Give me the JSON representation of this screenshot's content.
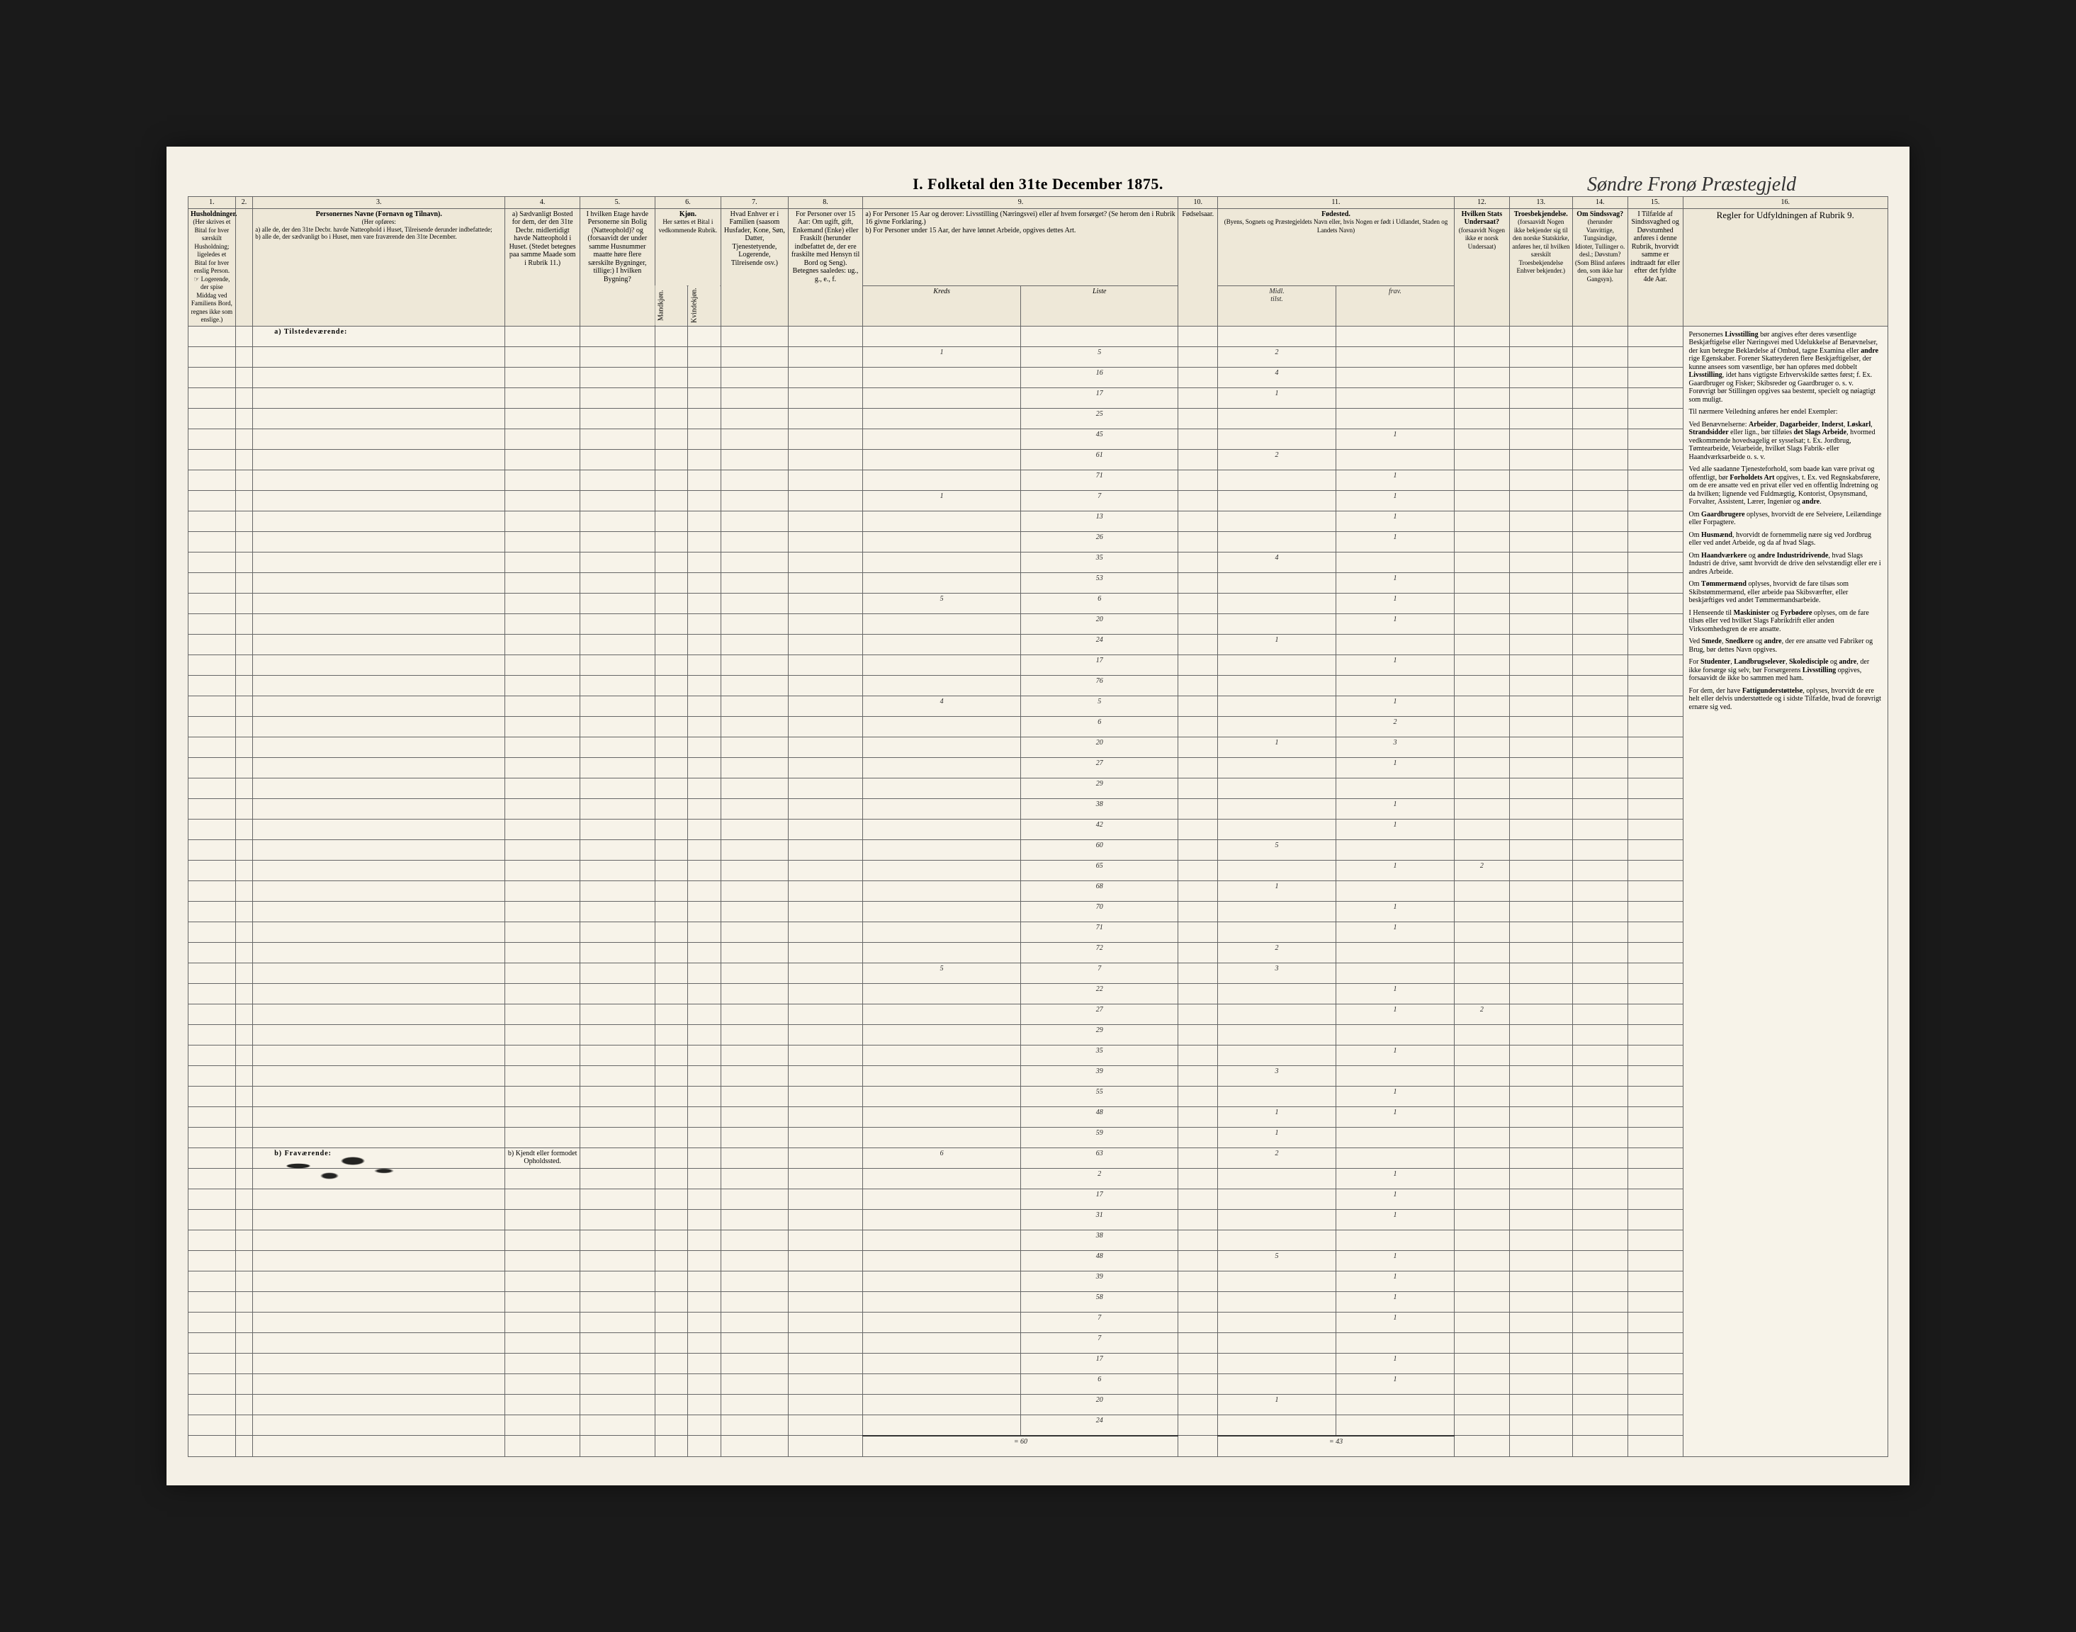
{
  "title": "I.  Folketal den 31te December 1875.",
  "parish_handwriting": "Søndre Fronø Præstegjeld",
  "columns": {
    "c1": {
      "num": "1.",
      "head": "Husholdninger.",
      "sub": "(Her skrives et Bital for hver særskilt Husholdning; ligeledes et Bital for hver enslig Person. ☞ Logerende, der spise Middag ved Familiens Bord, regnes ikke som enslige.)"
    },
    "c2": {
      "num": "2."
    },
    "c3": {
      "num": "3.",
      "head": "Personernes Navne (Fornavn og Tilnavn).",
      "sub_intro": "(Her opføres:",
      "sub_a": "a) alle de, der den 31te Decbr. havde Natteophold i Huset, Tilreisende derunder indbefattede;",
      "sub_b": "b) alle de, der sædvanligt bo i Huset, men vare fraværende den 31te December."
    },
    "c4": {
      "num": "4.",
      "head": "a) Sædvanligt Bosted for dem, der den 31te Decbr. midlertidigt havde Natteophold i Huset. (Stedet betegnes paa samme Maade som i Rubrik 11.)"
    },
    "c5": {
      "num": "5.",
      "head": "I hvilken Etage havde Personerne sin Bolig (Natteophold)? og (forsaavidt der under samme Husnummer maatte høre flere særskilte Bygninger, tillige:) I hvilken Bygning?"
    },
    "c6": {
      "num": "6.",
      "head": "Kjøn.",
      "sub_a": "Her sættes et Bital i vedkommende Rubrik.",
      "col_a": "Mandkjøn.",
      "col_b": "Kvindekjøn."
    },
    "c7": {
      "num": "7.",
      "head": "Hvad Enhver er i Familien (saasom Husfader, Kone, Søn, Datter, Tjenestetyende, Logerende, Tilreisende osv.)"
    },
    "c8": {
      "num": "8.",
      "head": "For Personer over 15 Aar: Om ugift, gift, Enkemand (Enke) eller Fraskilt (herunder indbefattet de, der ere fraskilte med Hensyn til Bord og Seng). Betegnes saaledes: ug., g., e., f."
    },
    "c9": {
      "num": "9.",
      "head_a": "a) For Personer 15 Aar og derover: Livsstilling (Næringsvei) eller af hvem forsørget? (Se herom den i Rubrik 16 givne Forklaring.)",
      "head_b": "b) For Personer under 15 Aar, der have lønnet Arbeide, opgives dettes Art.",
      "hw_a": "Kreds",
      "hw_b": "Liste"
    },
    "c10": {
      "num": "10.",
      "head": "Fødselsaar."
    },
    "c11": {
      "num": "11.",
      "head": "Fødested.",
      "sub": "(Byens, Sognets og Præstegjeldets Navn eller, hvis Nogen er født i Udlandet, Staden og Landets Navn)",
      "hw_a": "Midl.",
      "hw_b": "tilst.",
      "hw_c": "frav."
    },
    "c12": {
      "num": "12.",
      "head": "Hvilken Stats Undersaat?",
      "sub": "(forsaavidt Nogen ikke er norsk Undersaat)"
    },
    "c13": {
      "num": "13.",
      "head": "Troesbekjendelse.",
      "sub": "(forsaavidt Nogen ikke bekjender sig til den norske Statskirke, anføres her, til hvilken særskilt Troesbekjendelse Enhver bekjender.)"
    },
    "c14": {
      "num": "14.",
      "head": "Om Sindssvag?",
      "sub": "(herunder Vanvittige, Tungsindige, Idioter, Tullinger o. desl.; Døvstum? (Som Blind anføres den, som ikke har Gangsyn)."
    },
    "c15": {
      "num": "15.",
      "head": "I Tilfælde af Sindssvaghed og Døvstumhed anføres i denne Rubrik, hvorvidt samme er indtraadt før eller efter det fyldte 4de Aar."
    },
    "c16": {
      "num": "16.",
      "head": "Regler for Udfyldningen af Rubrik 9."
    }
  },
  "section_present": "a) Tilstedeværende:",
  "section_absent": "b) Fraværende:",
  "absent_col4": "b) Kjendt eller formodet Opholdssted.",
  "rows": [
    {
      "kreds": "1",
      "liste": "5",
      "c11a": "2"
    },
    {
      "kreds": "",
      "liste": "16",
      "c11a": "4"
    },
    {
      "kreds": "",
      "liste": "17",
      "c11a": "1"
    },
    {
      "kreds": "",
      "liste": "25",
      "c11a": ""
    },
    {
      "kreds": "",
      "liste": "45",
      "c11a": "",
      "c11b": "1"
    },
    {
      "kreds": "",
      "liste": "61",
      "c11a": "2",
      "c11b": ""
    },
    {
      "kreds": "",
      "liste": "71",
      "c11a": "",
      "c11b": "1"
    },
    {
      "kreds": "1",
      "liste": "7",
      "c11a": "",
      "c11b": "1"
    },
    {
      "kreds": "",
      "liste": "13",
      "c11a": "",
      "c11b": "1"
    },
    {
      "kreds": "",
      "liste": "26",
      "c11a": "",
      "c11b": "1"
    },
    {
      "kreds": "",
      "liste": "35",
      "c11a": "4",
      "c11b": ""
    },
    {
      "kreds": "",
      "liste": "53",
      "c11a": "",
      "c11b": "1"
    },
    {
      "kreds": "5",
      "liste": "6",
      "c11a": "",
      "c11b": "1"
    },
    {
      "kreds": "",
      "liste": "20",
      "c11a": "",
      "c11b": "1"
    },
    {
      "kreds": "",
      "liste": "24",
      "c11a": "1",
      "c11b": ""
    },
    {
      "kreds": "",
      "liste": "17",
      "c11a": "",
      "c11b": "1"
    },
    {
      "kreds": "",
      "liste": "76",
      "c11a": "",
      "c11b": ""
    },
    {
      "kreds": "4",
      "liste": "5",
      "c11a": "",
      "c11b": "1"
    },
    {
      "kreds": "",
      "liste": "6",
      "c11a": "",
      "c11b": "2"
    },
    {
      "kreds": "",
      "liste": "20",
      "c11a": "1",
      "c11b": "3"
    },
    {
      "kreds": "",
      "liste": "27",
      "c11a": "",
      "c11b": "1"
    },
    {
      "kreds": "",
      "liste": "29",
      "c11a": "",
      "c11b": ""
    },
    {
      "kreds": "",
      "liste": "38",
      "c11a": "",
      "c11b": "1"
    },
    {
      "kreds": "",
      "liste": "42",
      "c11a": "",
      "c11b": "1"
    },
    {
      "kreds": "",
      "liste": "60",
      "c11a": "5",
      "c11b": ""
    },
    {
      "kreds": "",
      "liste": "65",
      "c11a": "",
      "c11b": "1",
      "c12": "2"
    },
    {
      "kreds": "",
      "liste": "68",
      "c11a": "1",
      "c11b": ""
    },
    {
      "kreds": "",
      "liste": "70",
      "c11a": "",
      "c11b": "1"
    },
    {
      "kreds": "",
      "liste": "71",
      "c11a": "",
      "c11b": "1"
    },
    {
      "kreds": "",
      "liste": "72",
      "c11a": "2",
      "c11b": ""
    },
    {
      "kreds": "5",
      "liste": "7",
      "c11a": "3",
      "c11b": ""
    },
    {
      "kreds": "",
      "liste": "22",
      "c11a": "",
      "c11b": "1"
    },
    {
      "kreds": "",
      "liste": "27",
      "c11a": "",
      "c11b": "1",
      "c12": "2"
    },
    {
      "kreds": "",
      "liste": "29",
      "c11a": "",
      "c11b": ""
    },
    {
      "kreds": "",
      "liste": "35",
      "c11a": "",
      "c11b": "1"
    },
    {
      "kreds": "",
      "liste": "39",
      "c11a": "3",
      "c11b": ""
    },
    {
      "kreds": "",
      "liste": "55",
      "c11a": "",
      "c11b": "1"
    },
    {
      "kreds": "",
      "liste": "48",
      "c11a": "1",
      "c11b": "1"
    },
    {
      "kreds": "",
      "liste": "59",
      "c11a": "1",
      "c11b": ""
    },
    {
      "kreds": "6",
      "liste": "63",
      "c11a": "2",
      "c11b": ""
    },
    {
      "kreds": "",
      "liste": "2",
      "c11a": "",
      "c11b": "1"
    },
    {
      "kreds": "",
      "liste": "17",
      "c11a": "",
      "c11b": "1"
    },
    {
      "kreds": "",
      "liste": "31",
      "c11a": "",
      "c11b": "1"
    },
    {
      "kreds": "",
      "liste": "38",
      "c11a": "",
      "c11b": ""
    },
    {
      "kreds": "",
      "liste": "48",
      "c11a": "5",
      "c11b": "1"
    },
    {
      "kreds": "",
      "liste": "39",
      "c11a": "",
      "c11b": "1"
    },
    {
      "kreds": "",
      "liste": "58",
      "c11a": "",
      "c11b": "1"
    },
    {
      "kreds": "",
      "liste": "7",
      "c11a": "",
      "c11b": "1"
    },
    {
      "kreds": "",
      "liste": "7",
      "c11a": "",
      "c11b": ""
    },
    {
      "kreds": "",
      "liste": "17",
      "c11a": "",
      "c11b": "1"
    },
    {
      "kreds": "",
      "liste": "6",
      "c11a": "",
      "c11b": "1"
    },
    {
      "kreds": "",
      "liste": "20",
      "c11a": "1",
      "c11b": ""
    },
    {
      "kreds": "",
      "liste": "24",
      "c11a": "",
      "c11b": ""
    }
  ],
  "sums": {
    "kreds_total": "= 60",
    "liste_total": "= 43"
  },
  "rules_paragraphs": [
    "Personernes Livsstilling bør angives efter deres væsentlige Beskjæftigelse eller Næringsvei med Udelukkelse af Benævnelser, der kun betegne Beklædelse af Ombud, tagne Examina eller andre rige Egenskaber. Forener Skatteyderen flere Beskjæftigelser, der kunne ansees som væsentlige, bør han opføres med dobbelt Livsstilling, idet hans vigtigste Erhvervskilde sættes først; f. Ex. Gaardbruger og Fisker; Skibsreder og Gaardbruger o. s. v. Forøvrigt bør Stillingen opgives saa bestemt, specielt og nøiagtigt som muligt.",
    "Til nærmere Veiledning anføres her endel Exempler:",
    "Ved Benævnelserne: Arbeider, Dagarbeider, Inderst, Løskarl, Strandsidder eller lign., bør tilføies det Slags Arbeide, hvormed vedkommende hovedsagelig er sysselsat; t. Ex. Jordbrug, Tømtearbeide, Veiarbeide, hvilket Slags Fabrik- eller Haandværksarbeide o. s. v.",
    "Ved alle saadanne Tjenesteforhold, som baade kan være privat og offentligt, bør Forholdets Art opgives, t. Ex. ved Regnskabsførere, om de ere ansatte ved en privat eller ved en offentlig Indretning og da hvilken; lignende ved Fuldmægtig, Kontorist, Opsynsmand, Forvalter, Assistent, Lærer, Ingeniør og andre.",
    "Om Gaardbrugere oplyses, hvorvidt de ere Selveiere, Leilændinge eller Forpagtere.",
    "Om Husmænd, hvorvidt de fornemmelig nære sig ved Jordbrug eller ved andet Arbeide, og da af hvad Slags.",
    "Om Haandværkere og andre Industridrivende, hvad Slags Industri de drive, samt hvorvidt de drive den selvstændigt eller ere i andres Arbeide.",
    "Om Tømmermænd oplyses, hvorvidt de fare tilsøs som Skibstømmermænd, eller arbeide paa Skibsværfter, eller beskjæftiges ved andet Tømmermandsarbeide.",
    "I Henseende til Maskinister og Fyrbødere oplyses, om de fare tilsøs eller ved hvilket Slags Fabrikdrift eller anden Virksomhedsgren de ere ansatte.",
    "Ved Smede, Snedkere og andre, der ere ansatte ved Fabriker og Brug, bør dettes Navn opgives.",
    "For Studenter, Landbrugselever, Skoledisciple og andre, der ikke forsørge sig selv, bør Forsørgerens Livsstilling opgives, forsaavidt de ikke bo sammen med ham.",
    "For dem, der have Fattigunderstøttelse, oplyses, hvorvidt de ere helt eller delvis understøttede og i sidste Tilfælde, hvad de forøvrigt ernære sig ved."
  ]
}
